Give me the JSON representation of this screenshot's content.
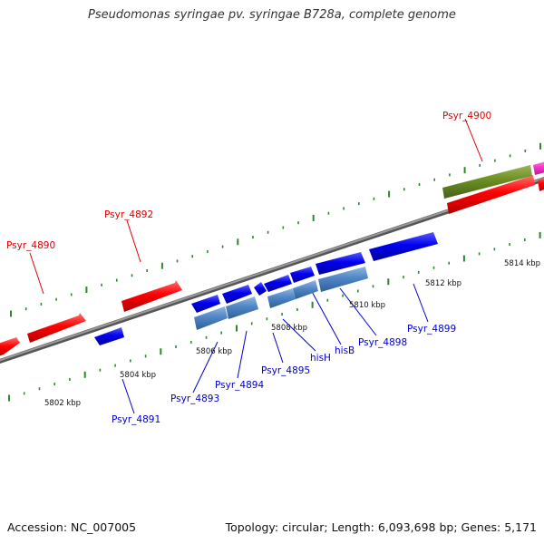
{
  "title": "Pseudomonas syringae pv. syringae B728a, complete genome",
  "footer": {
    "accession": "Accession: NC_007005",
    "topology": "Topology: circular; Length: 6,093,698 bp; Genes: 5,171"
  },
  "colors": {
    "forward_gene": "#ff0000",
    "reverse_gene": "#0000ee",
    "reverse_operon": "#4f86c6",
    "olive_gene": "#6b8e23",
    "magenta_gene": "#ff33cc",
    "forward_label": "#dd0000",
    "reverse_label": "#0000cc",
    "tick": "#2a8a2a",
    "backbone": "#777777"
  },
  "gene_labels": {
    "psyr_4890": "Psyr_4890",
    "psyr_4891": "Psyr_4891",
    "psyr_4892": "Psyr_4892",
    "psyr_4893": "Psyr_4893",
    "psyr_4894": "Psyr_4894",
    "psyr_4895": "Psyr_4895",
    "hisH": "hisH",
    "hisB": "hisB",
    "psyr_4898": "Psyr_4898",
    "psyr_4899": "Psyr_4899",
    "psyr_4900": "Psyr_4900"
  },
  "scale_labels": {
    "kbp_5802": "5802 kbp",
    "kbp_5804": "5804 kbp",
    "kbp_5806": "5806 kbp",
    "kbp_5808": "5808 kbp",
    "kbp_5810": "5810 kbp",
    "kbp_5812": "5812 kbp",
    "kbp_5814": "5814 kbp"
  }
}
